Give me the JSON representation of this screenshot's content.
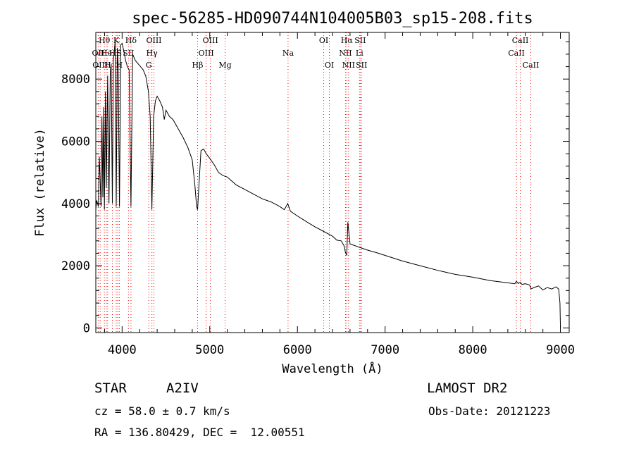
{
  "chart_data": {
    "type": "line",
    "title": "spec-56285-HD090744N104005B03_sp15-208.fits",
    "xlabel": "Wavelength (Å)",
    "ylabel": "Flux (relative)",
    "xlim": [
      3700,
      9100
    ],
    "ylim": [
      -150,
      9500
    ],
    "xticks": [
      4000,
      5000,
      6000,
      7000,
      8000,
      9000
    ],
    "yticks": [
      0,
      2000,
      4000,
      6000,
      8000
    ],
    "grid": false,
    "spectrum": {
      "x": [
        3700,
        3710,
        3720,
        3730,
        3740,
        3760,
        3770,
        3780,
        3790,
        3798,
        3810,
        3820,
        3835,
        3850,
        3865,
        3875,
        3889,
        3900,
        3920,
        3933,
        3945,
        3955,
        3970,
        3985,
        4000,
        4020,
        4040,
        4060,
        4080,
        4101,
        4120,
        4150,
        4180,
        4210,
        4240,
        4270,
        4300,
        4320,
        4340,
        4360,
        4380,
        4400,
        4430,
        4460,
        4481,
        4500,
        4540,
        4580,
        4620,
        4660,
        4700,
        4750,
        4800,
        4830,
        4850,
        4861,
        4875,
        4900,
        4930,
        4960,
        5000,
        5050,
        5100,
        5150,
        5200,
        5300,
        5400,
        5500,
        5600,
        5700,
        5800,
        5850,
        5890,
        5920,
        6000,
        6100,
        6200,
        6300,
        6400,
        6450,
        6500,
        6530,
        6550,
        6563,
        6575,
        6600,
        6650,
        6700,
        6800,
        6900,
        7000,
        7200,
        7400,
        7600,
        7800,
        8000,
        8200,
        8400,
        8480,
        8498,
        8520,
        8542,
        8560,
        8600,
        8650,
        8662,
        8700,
        8750,
        8800,
        8850,
        8900,
        8950,
        8980,
        8995,
        9000
      ],
      "y": [
        3800,
        4100,
        4000,
        3900,
        5500,
        3900,
        6800,
        4200,
        7100,
        3800,
        7600,
        4500,
        8100,
        4000,
        8200,
        8500,
        4000,
        8600,
        9200,
        3900,
        9000,
        8500,
        3900,
        9100,
        9150,
        8900,
        8600,
        8400,
        8300,
        3900,
        8800,
        8600,
        8500,
        8400,
        8300,
        8100,
        7600,
        6800,
        3800,
        6800,
        7300,
        7450,
        7300,
        7100,
        6700,
        7000,
        6800,
        6700,
        6500,
        6300,
        6100,
        5800,
        5400,
        4600,
        3900,
        3800,
        4500,
        5700,
        5750,
        5600,
        5450,
        5250,
        5000,
        4900,
        4850,
        4600,
        4450,
        4300,
        4150,
        4050,
        3900,
        3800,
        4000,
        3750,
        3600,
        3420,
        3250,
        3100,
        2950,
        2820,
        2800,
        2650,
        2400,
        2350,
        3400,
        2700,
        2650,
        2600,
        2500,
        2420,
        2330,
        2150,
        2000,
        1850,
        1720,
        1630,
        1520,
        1450,
        1420,
        1500,
        1430,
        1470,
        1400,
        1420,
        1380,
        1250,
        1300,
        1350,
        1220,
        1300,
        1250,
        1320,
        1250,
        800,
        0
      ]
    },
    "line_markers": [
      {
        "wavelength": 3727,
        "label": "OII",
        "row": 1
      },
      {
        "wavelength": 3750,
        "label": "OIII",
        "row": 2
      },
      {
        "wavelength": 3798,
        "label": "Hθ",
        "row": 0
      },
      {
        "wavelength": 3820,
        "label": "He",
        "row": 1
      },
      {
        "wavelength": 3835,
        "label": "H",
        "row": 2
      },
      {
        "wavelength": 3889,
        "label": "H",
        "row": 1
      },
      {
        "wavelength": 3933,
        "label": "K",
        "row": 0
      },
      {
        "wavelength": 3950,
        "label": "IS",
        "row": 1
      },
      {
        "wavelength": 3968,
        "label": "H",
        "row": 2
      },
      {
        "wavelength": 4072,
        "label": "SII",
        "row": 1
      },
      {
        "wavelength": 4101,
        "label": "Hδ",
        "row": 0
      },
      {
        "wavelength": 4304,
        "label": "G",
        "row": 2
      },
      {
        "wavelength": 4340,
        "label": "Hγ",
        "row": 1
      },
      {
        "wavelength": 4363,
        "label": "OIII",
        "row": 0
      },
      {
        "wavelength": 4861,
        "label": "Hβ",
        "row": 2
      },
      {
        "wavelength": 4959,
        "label": "OIII",
        "row": 1
      },
      {
        "wavelength": 5007,
        "label": "OIII",
        "row": 0
      },
      {
        "wavelength": 5175,
        "label": "Mg",
        "row": 2
      },
      {
        "wavelength": 5893,
        "label": "Na",
        "row": 1
      },
      {
        "wavelength": 6300,
        "label": "OI",
        "row": 0
      },
      {
        "wavelength": 6364,
        "label": "OI",
        "row": 2
      },
      {
        "wavelength": 6548,
        "label": "NII",
        "row": 1
      },
      {
        "wavelength": 6563,
        "label": "Hα",
        "row": 0
      },
      {
        "wavelength": 6583,
        "label": "NII",
        "row": 2
      },
      {
        "wavelength": 6708,
        "label": "Li",
        "row": 1
      },
      {
        "wavelength": 6716,
        "label": "SII",
        "row": 0
      },
      {
        "wavelength": 6731,
        "label": "SII",
        "row": 2
      },
      {
        "wavelength": 8498,
        "label": "CaII",
        "row": 1
      },
      {
        "wavelength": 8542,
        "label": "CaII",
        "row": 0
      },
      {
        "wavelength": 8662,
        "label": "CaII",
        "row": 2
      }
    ],
    "colors": {
      "spectrum": "#000000",
      "markers": "#ff0000",
      "axes": "#000000"
    }
  },
  "info": {
    "object_class": "STAR",
    "subclass": "A2IV",
    "survey": "LAMOST DR2",
    "cz": "cz = 58.0 ± 0.7 km/s",
    "obs_date": "Obs-Date: 20121223",
    "coords": "RA = 136.80429, DEC =  12.00551"
  }
}
